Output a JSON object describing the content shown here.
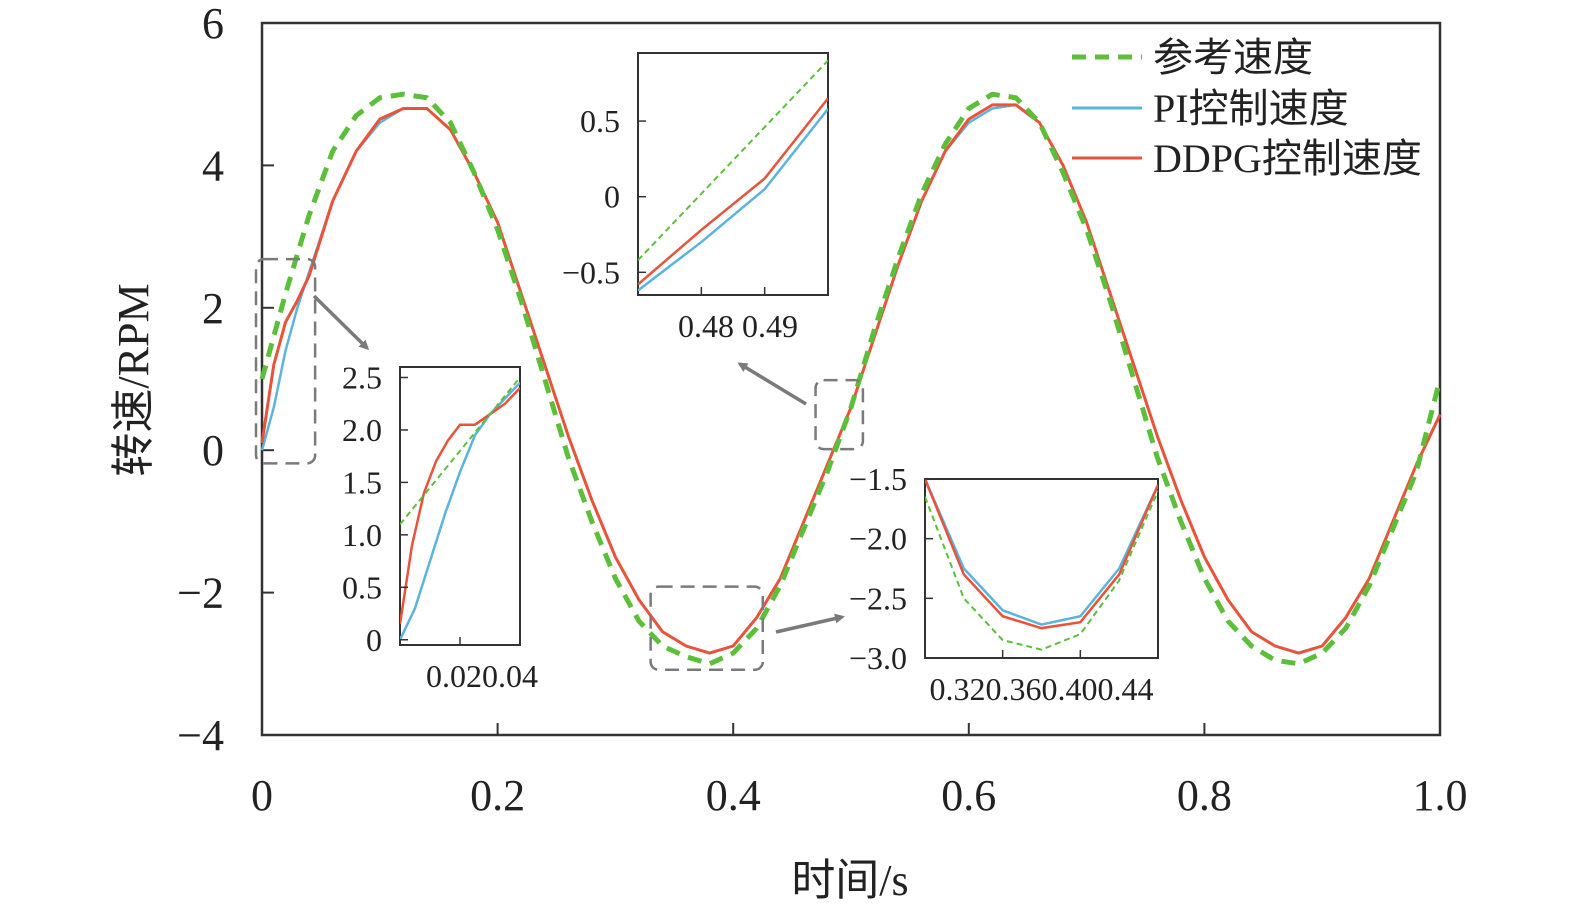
{
  "colors": {
    "reference": "#5cbf3a",
    "pi": "#5ab4dd",
    "ddpg": "#e8533a",
    "axis": "#333333",
    "callout": "#7a7a7a"
  },
  "chart_data": {
    "type": "line",
    "xlabel": "时间/s",
    "ylabel": "转速/RPM",
    "xlim": [
      0,
      1.0
    ],
    "ylim": [
      -4,
      6
    ],
    "x_ticks": [
      0,
      0.2,
      0.4,
      0.6,
      0.8,
      1.0
    ],
    "x_tick_labels": [
      "0",
      "0.2",
      "0.4",
      "0.6",
      "0.8",
      "1.0"
    ],
    "y_ticks": [
      -4,
      -2,
      0,
      2,
      4,
      6
    ],
    "y_tick_labels": [
      "−4",
      "−2",
      "0",
      "2",
      "4",
      "6"
    ],
    "grid": false,
    "legend_position": "top-right",
    "series": [
      {
        "name": "参考速度",
        "key": "reference",
        "style": "dashed",
        "x": [
          0,
          0.02,
          0.04,
          0.06,
          0.08,
          0.1,
          0.12,
          0.14,
          0.16,
          0.18,
          0.2,
          0.22,
          0.24,
          0.26,
          0.28,
          0.3,
          0.32,
          0.34,
          0.36,
          0.38,
          0.4,
          0.42,
          0.44,
          0.46,
          0.48,
          0.5,
          0.52,
          0.54,
          0.56,
          0.58,
          0.6,
          0.62,
          0.64,
          0.66,
          0.68,
          0.7,
          0.72,
          0.74,
          0.76,
          0.78,
          0.8,
          0.82,
          0.84,
          0.86,
          0.88,
          0.9,
          0.92,
          0.94,
          0.96,
          0.98,
          1.0
        ],
        "y": [
          1.0,
          2.2,
          3.3,
          4.2,
          4.7,
          4.95,
          5.0,
          4.95,
          4.6,
          3.9,
          3.1,
          2.1,
          1.0,
          -0.1,
          -1.0,
          -1.8,
          -2.4,
          -2.75,
          -2.9,
          -3.0,
          -2.85,
          -2.5,
          -1.9,
          -1.1,
          -0.3,
          0.6,
          1.7,
          2.7,
          3.6,
          4.3,
          4.8,
          5.0,
          4.95,
          4.6,
          3.9,
          3.1,
          2.1,
          1.0,
          -0.1,
          -1.0,
          -1.8,
          -2.4,
          -2.75,
          -2.95,
          -3.0,
          -2.85,
          -2.5,
          -1.9,
          -1.1,
          -0.3,
          1.0
        ]
      },
      {
        "name": "PI控制速度",
        "key": "pi",
        "style": "solid",
        "x": [
          0,
          0.01,
          0.02,
          0.03,
          0.04,
          0.06,
          0.08,
          0.1,
          0.12,
          0.14,
          0.16,
          0.18,
          0.2,
          0.22,
          0.24,
          0.26,
          0.28,
          0.3,
          0.32,
          0.34,
          0.36,
          0.38,
          0.4,
          0.42,
          0.44,
          0.46,
          0.48,
          0.5,
          0.52,
          0.54,
          0.56,
          0.58,
          0.6,
          0.62,
          0.64,
          0.66,
          0.68,
          0.7,
          0.72,
          0.74,
          0.76,
          0.78,
          0.8,
          0.82,
          0.84,
          0.86,
          0.88,
          0.9,
          0.92,
          0.94,
          0.96,
          0.98,
          1.0
        ],
        "y": [
          0.0,
          0.6,
          1.4,
          2.0,
          2.5,
          3.5,
          4.2,
          4.6,
          4.8,
          4.8,
          4.5,
          3.9,
          3.2,
          2.2,
          1.2,
          0.2,
          -0.7,
          -1.5,
          -2.1,
          -2.55,
          -2.75,
          -2.85,
          -2.75,
          -2.35,
          -1.8,
          -1.0,
          -0.2,
          0.6,
          1.6,
          2.6,
          3.5,
          4.2,
          4.6,
          4.8,
          4.85,
          4.6,
          4.0,
          3.2,
          2.2,
          1.2,
          0.2,
          -0.7,
          -1.5,
          -2.1,
          -2.55,
          -2.75,
          -2.85,
          -2.75,
          -2.35,
          -1.8,
          -1.0,
          -0.2,
          0.5
        ]
      },
      {
        "name": "DDPG控制速度",
        "key": "ddpg",
        "style": "solid",
        "x": [
          0,
          0.01,
          0.02,
          0.03,
          0.04,
          0.06,
          0.08,
          0.1,
          0.12,
          0.14,
          0.16,
          0.18,
          0.2,
          0.22,
          0.24,
          0.26,
          0.28,
          0.3,
          0.32,
          0.34,
          0.36,
          0.38,
          0.4,
          0.42,
          0.44,
          0.46,
          0.48,
          0.5,
          0.52,
          0.54,
          0.56,
          0.58,
          0.6,
          0.62,
          0.64,
          0.66,
          0.68,
          0.7,
          0.72,
          0.74,
          0.76,
          0.78,
          0.8,
          0.82,
          0.84,
          0.86,
          0.88,
          0.9,
          0.92,
          0.94,
          0.96,
          0.98,
          1.0
        ],
        "y": [
          0.1,
          1.2,
          1.8,
          2.1,
          2.45,
          3.5,
          4.2,
          4.65,
          4.8,
          4.8,
          4.5,
          3.9,
          3.2,
          2.2,
          1.2,
          0.2,
          -0.7,
          -1.5,
          -2.1,
          -2.55,
          -2.75,
          -2.85,
          -2.75,
          -2.35,
          -1.8,
          -1.0,
          -0.2,
          0.6,
          1.6,
          2.6,
          3.5,
          4.2,
          4.65,
          4.85,
          4.85,
          4.6,
          4.0,
          3.2,
          2.2,
          1.2,
          0.2,
          -0.7,
          -1.5,
          -2.1,
          -2.55,
          -2.75,
          -2.85,
          -2.75,
          -2.35,
          -1.8,
          -1.0,
          -0.2,
          0.5
        ]
      }
    ],
    "insets": [
      {
        "name": "inset-start",
        "xlim": [
          0.0,
          0.04
        ],
        "ylim": [
          -0.05,
          2.6
        ],
        "x_ticks": [
          0.02,
          0.04
        ],
        "x_tick_labels": [
          "0.02",
          "0.04"
        ],
        "x_tick_text": "0.020.04",
        "y_ticks": [
          0,
          0.5,
          1.0,
          1.5,
          2.0,
          2.5
        ],
        "y_tick_labels": [
          "0",
          "0.5",
          "1.0",
          "1.5",
          "2.0",
          "2.5"
        ],
        "series": {
          "reference": {
            "x": [
              0,
              0.04
            ],
            "y": [
              1.1,
              2.5
            ]
          },
          "pi": {
            "x": [
              0,
              0.005,
              0.01,
              0.015,
              0.02,
              0.025,
              0.03,
              0.035,
              0.04
            ],
            "y": [
              0.0,
              0.3,
              0.75,
              1.2,
              1.6,
              1.95,
              2.15,
              2.3,
              2.45
            ]
          },
          "ddpg": {
            "x": [
              0,
              0.004,
              0.008,
              0.012,
              0.016,
              0.02,
              0.025,
              0.03,
              0.035,
              0.04
            ],
            "y": [
              0.15,
              0.9,
              1.4,
              1.7,
              1.9,
              2.05,
              2.05,
              2.15,
              2.25,
              2.4
            ]
          }
        }
      },
      {
        "name": "inset-mid",
        "xlim": [
          0.47,
          0.5
        ],
        "ylim": [
          -0.65,
          0.95
        ],
        "x_ticks": [
          0.48,
          0.49
        ],
        "x_tick_labels": [
          "0.48",
          "0.49"
        ],
        "x_tick_text": "0.48 0.49",
        "y_ticks": [
          -0.5,
          0,
          0.5
        ],
        "y_tick_labels": [
          "−0.5",
          "0",
          "0.5"
        ],
        "series": {
          "reference": {
            "x": [
              0.47,
              0.5
            ],
            "y": [
              -0.42,
              0.9
            ]
          },
          "pi": {
            "x": [
              0.47,
              0.48,
              0.49,
              0.5
            ],
            "y": [
              -0.62,
              -0.3,
              0.05,
              0.58
            ]
          },
          "ddpg": {
            "x": [
              0.47,
              0.48,
              0.49,
              0.5
            ],
            "y": [
              -0.58,
              -0.22,
              0.12,
              0.65
            ]
          }
        }
      },
      {
        "name": "inset-valley",
        "xlim": [
          0.32,
          0.44
        ],
        "ylim": [
          -3.0,
          -1.5
        ],
        "x_ticks": [
          0.32,
          0.36,
          0.4,
          0.44
        ],
        "x_tick_labels": [
          "0.32",
          "0.36",
          "0.40",
          "0.44"
        ],
        "x_tick_text": "0.320.360.400.44",
        "y_ticks": [
          -3.0,
          -2.5,
          -2.0,
          -1.5
        ],
        "y_tick_labels": [
          "−3.0",
          "−2.5",
          "−2.0",
          "−1.5"
        ],
        "series": {
          "reference": {
            "x": [
              0.32,
              0.34,
              0.36,
              0.38,
              0.4,
              0.42,
              0.44
            ],
            "y": [
              -1.65,
              -2.5,
              -2.85,
              -2.93,
              -2.8,
              -2.35,
              -1.6
            ]
          },
          "pi": {
            "x": [
              0.32,
              0.34,
              0.36,
              0.38,
              0.4,
              0.42,
              0.44
            ],
            "y": [
              -1.5,
              -2.25,
              -2.6,
              -2.72,
              -2.65,
              -2.25,
              -1.55
            ]
          },
          "ddpg": {
            "x": [
              0.32,
              0.34,
              0.36,
              0.38,
              0.4,
              0.42,
              0.44
            ],
            "y": [
              -1.5,
              -2.3,
              -2.65,
              -2.75,
              -2.7,
              -2.3,
              -1.55
            ]
          }
        }
      }
    ]
  }
}
